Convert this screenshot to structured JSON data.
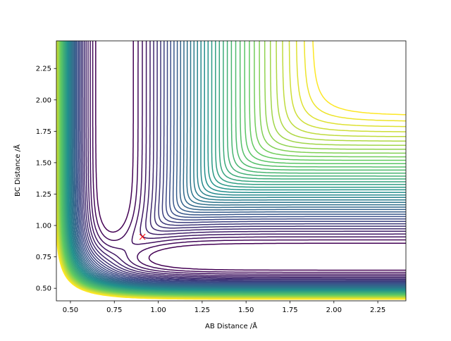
{
  "chart_data": {
    "type": "contour",
    "xlabel": "AB Distance /Å",
    "ylabel": "BC Distance /Å",
    "xlim": [
      0.42,
      2.41
    ],
    "ylim": [
      0.4,
      2.47
    ],
    "xticks": [
      {
        "value": 0.5,
        "label": "0.50"
      },
      {
        "value": 0.75,
        "label": "0.75"
      },
      {
        "value": 1.0,
        "label": "1.00"
      },
      {
        "value": 1.25,
        "label": "1.25"
      },
      {
        "value": 1.5,
        "label": "1.50"
      },
      {
        "value": 1.75,
        "label": "1.75"
      },
      {
        "value": 2.0,
        "label": "2.00"
      },
      {
        "value": 2.25,
        "label": "2.25"
      }
    ],
    "yticks": [
      {
        "value": 0.5,
        "label": "0.50"
      },
      {
        "value": 0.75,
        "label": "0.75"
      },
      {
        "value": 1.0,
        "label": "1.00"
      },
      {
        "value": 1.25,
        "label": "1.25"
      },
      {
        "value": 1.5,
        "label": "1.50"
      },
      {
        "value": 1.75,
        "label": "1.75"
      },
      {
        "value": 2.0,
        "label": "2.00"
      },
      {
        "value": 2.25,
        "label": "2.25"
      }
    ],
    "points": {
      "x": [
        0.91
      ],
      "y": [
        0.91
      ],
      "color": "#ff0000",
      "marker": "x"
    }
  }
}
